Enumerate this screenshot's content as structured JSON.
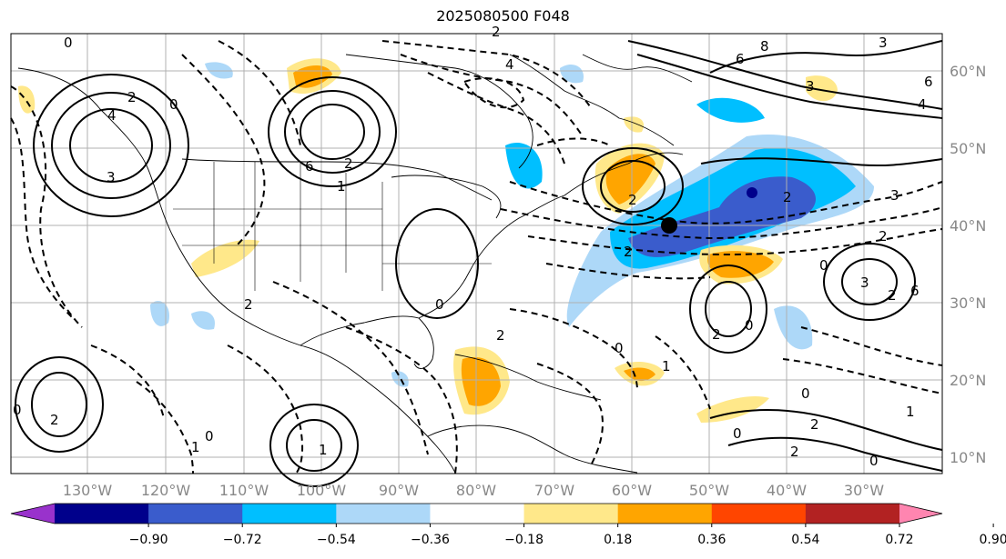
{
  "title": "2025080500 F048",
  "lon_labels": [
    "130°W",
    "120°W",
    "110°W",
    "100°W",
    "90°W",
    "80°W",
    "70°W",
    "60°W",
    "50°W",
    "40°W",
    "30°W"
  ],
  "lat_labels": [
    "60°N",
    "50°N",
    "40°N",
    "30°N",
    "20°N",
    "10°N"
  ],
  "colorbar": {
    "ticks": [
      "−0.90",
      "−0.72",
      "−0.54",
      "−0.36",
      "−0.18",
      "0.18",
      "0.36",
      "0.54",
      "0.72",
      "0.90"
    ],
    "colors": [
      "#9932cc",
      "#00008b",
      "#3a5ccc",
      "#00bfff",
      "#add8f8",
      "#ffffff",
      "#ffe88a",
      "#ffa500",
      "#ff4500",
      "#b22222",
      "#ff85b0"
    ]
  },
  "contour_labels": [
    "0",
    "2",
    "4",
    "3",
    "8",
    "6",
    "1"
  ],
  "marker": {
    "lat": 40,
    "lon": -55
  }
}
